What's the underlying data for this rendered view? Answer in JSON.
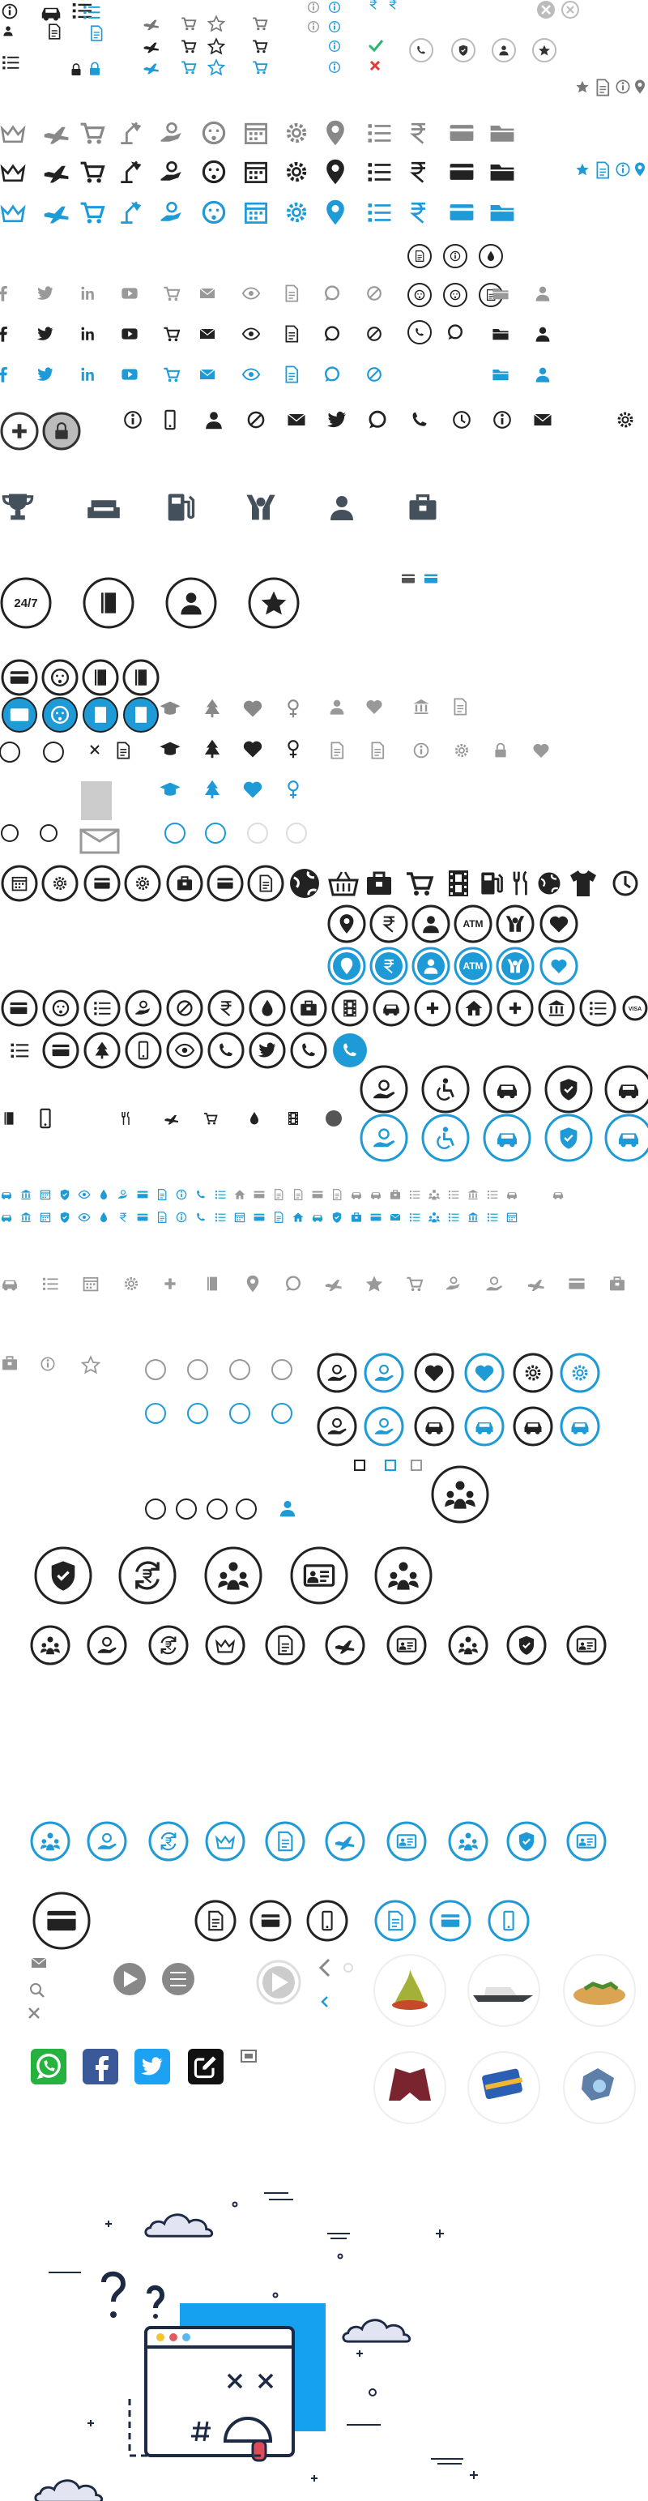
{
  "labels": {
    "badge_247": "24/7",
    "atm_1": "ATM",
    "atm_2": "ATM",
    "visa": "VISA"
  }
}
